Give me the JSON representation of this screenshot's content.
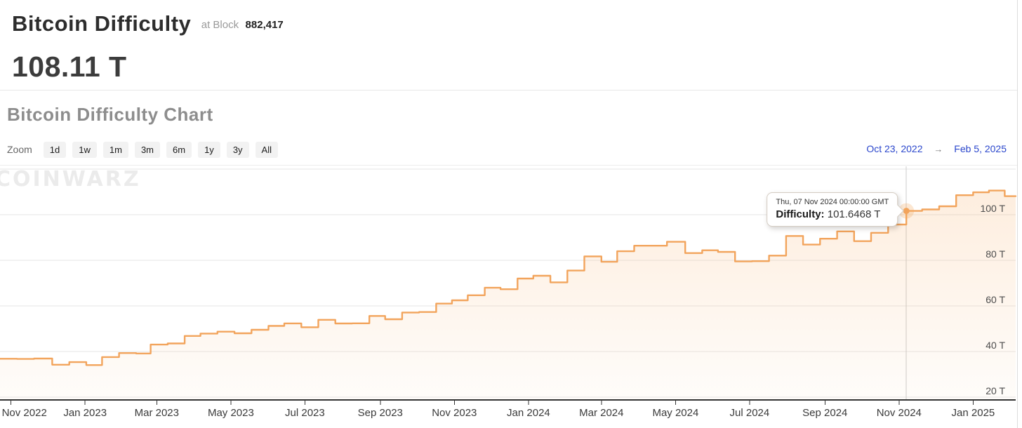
{
  "header": {
    "title": "Bitcoin Difficulty",
    "at_block_label": "at Block",
    "block_number": "882,417",
    "current_value": "108.11 T"
  },
  "chart_section": {
    "title": "Bitcoin Difficulty Chart",
    "zoom_label": "Zoom",
    "zoom_options": [
      "1d",
      "1w",
      "1m",
      "3m",
      "6m",
      "1y",
      "3y",
      "All"
    ],
    "date_range": {
      "start": "Oct 23, 2022",
      "arrow": "→",
      "end": "Feb 5, 2025"
    },
    "watermark": "COINWARZ"
  },
  "tooltip": {
    "date_line": "Thu, 07 Nov 2024 00:00:00 GMT",
    "label": "Difficulty:",
    "value": "101.6468 T"
  },
  "chart_data": {
    "type": "area",
    "title": "Bitcoin Difficulty Chart",
    "xlabel": "",
    "ylabel": "",
    "x_range": [
      "2022-10-23",
      "2025-02-05"
    ],
    "ylim": [
      18.8,
      121.2
    ],
    "y_ticks": [
      20,
      40,
      60,
      80,
      100,
      120
    ],
    "y_tick_labels": [
      "20 T",
      "40 T",
      "60 T",
      "80 T",
      "100 T",
      ""
    ],
    "x_ticks": [
      "2022-11-01",
      "2023-01-01",
      "2023-03-01",
      "2023-05-01",
      "2023-07-01",
      "2023-09-01",
      "2023-11-01",
      "2024-01-01",
      "2024-03-01",
      "2024-05-01",
      "2024-07-01",
      "2024-09-01",
      "2024-11-01",
      "2025-01-01"
    ],
    "x_tick_labels": [
      "Nov 2022",
      "Jan 2023",
      "Mar 2023",
      "May 2023",
      "Jul 2023",
      "Sep 2023",
      "Nov 2023",
      "Jan 2024",
      "Mar 2024",
      "May 2024",
      "Jul 2024",
      "Sep 2024",
      "Nov 2024",
      "Jan 2025"
    ],
    "grid": true,
    "legend": "none",
    "line_color": "#f2a45c",
    "fill_top": "rgba(246,168,92,0.20)",
    "fill_bottom": "rgba(246,168,92,0.03)",
    "grid_color": "#e6e6e6",
    "axis_color": "#333333",
    "label_color": "#3a3a3a",
    "y_label_color": "#4d4d4d",
    "highlight": {
      "date": "2024-11-07",
      "value": 101.6468
    },
    "series": [
      {
        "name": "Difficulty (T)",
        "step": true,
        "points": [
          [
            "2022-10-23",
            36.84
          ],
          [
            "2022-11-06",
            36.76
          ],
          [
            "2022-11-20",
            36.95
          ],
          [
            "2022-12-05",
            34.24
          ],
          [
            "2022-12-19",
            35.36
          ],
          [
            "2023-01-02",
            34.09
          ],
          [
            "2023-01-15",
            37.59
          ],
          [
            "2023-01-29",
            39.35
          ],
          [
            "2023-02-12",
            39.16
          ],
          [
            "2023-02-24",
            43.05
          ],
          [
            "2023-03-10",
            43.55
          ],
          [
            "2023-03-24",
            46.84
          ],
          [
            "2023-04-06",
            47.89
          ],
          [
            "2023-04-20",
            48.71
          ],
          [
            "2023-05-04",
            48.01
          ],
          [
            "2023-05-18",
            49.55
          ],
          [
            "2023-06-01",
            51.23
          ],
          [
            "2023-06-14",
            52.35
          ],
          [
            "2023-06-28",
            50.65
          ],
          [
            "2023-07-12",
            53.91
          ],
          [
            "2023-07-26",
            52.33
          ],
          [
            "2023-08-09",
            52.39
          ],
          [
            "2023-08-23",
            55.62
          ],
          [
            "2023-09-05",
            54.15
          ],
          [
            "2023-09-19",
            57.12
          ],
          [
            "2023-10-03",
            57.32
          ],
          [
            "2023-10-17",
            61.03
          ],
          [
            "2023-10-30",
            62.46
          ],
          [
            "2023-11-12",
            64.68
          ],
          [
            "2023-11-26",
            67.96
          ],
          [
            "2023-12-09",
            67.31
          ],
          [
            "2023-12-23",
            72.01
          ],
          [
            "2024-01-05",
            73.22
          ],
          [
            "2024-01-19",
            70.34
          ],
          [
            "2024-02-02",
            75.5
          ],
          [
            "2024-02-16",
            81.73
          ],
          [
            "2024-03-01",
            79.35
          ],
          [
            "2024-03-14",
            83.95
          ],
          [
            "2024-03-28",
            86.39
          ],
          [
            "2024-04-24",
            88.1
          ],
          [
            "2024-05-09",
            83.15
          ],
          [
            "2024-05-23",
            84.38
          ],
          [
            "2024-06-05",
            83.68
          ],
          [
            "2024-06-19",
            79.5
          ],
          [
            "2024-07-03",
            79.62
          ],
          [
            "2024-07-17",
            82.05
          ],
          [
            "2024-07-31",
            90.67
          ],
          [
            "2024-08-14",
            86.87
          ],
          [
            "2024-08-28",
            89.47
          ],
          [
            "2024-09-11",
            92.67
          ],
          [
            "2024-09-25",
            88.4
          ],
          [
            "2024-10-09",
            92.05
          ],
          [
            "2024-10-23",
            95.67
          ],
          [
            "2024-11-07",
            101.6468
          ],
          [
            "2024-11-20",
            102.29
          ],
          [
            "2024-12-04",
            103.68
          ],
          [
            "2024-12-18",
            108.52
          ],
          [
            "2025-01-01",
            109.78
          ],
          [
            "2025-01-14",
            110.57
          ],
          [
            "2025-01-27",
            108.11
          ],
          [
            "2025-02-05",
            108.11
          ]
        ]
      }
    ]
  }
}
